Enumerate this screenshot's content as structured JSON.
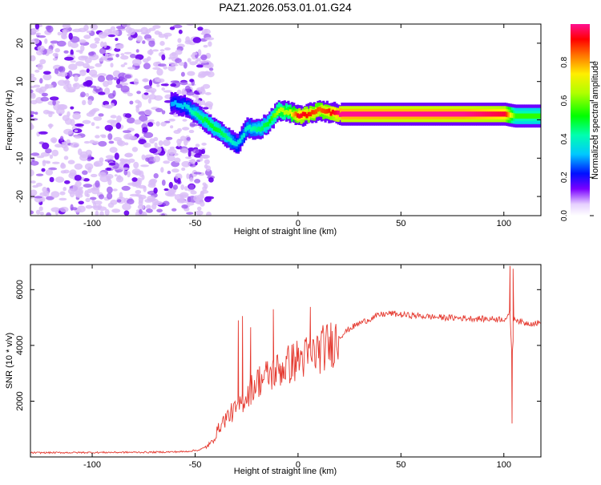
{
  "title": "PAZ1.2026.053.01.01.G24",
  "chart_data": [
    {
      "type": "heatmap",
      "xlabel": "Height of straight line (km)",
      "ylabel": "Frequency (Hz)",
      "xlim": [
        -130,
        118
      ],
      "ylim": [
        -25,
        25
      ],
      "xticks": [
        -100,
        -50,
        0,
        50,
        100
      ],
      "xtick_labels": [
        "-100",
        "-50",
        "0",
        "50",
        "100"
      ],
      "yticks": [
        -20,
        -10,
        0,
        10,
        20
      ],
      "ytick_labels": [
        "-20",
        "-10",
        "0",
        "10",
        "20"
      ],
      "colorbar": {
        "label": "Normalized spectral amplitude",
        "range": [
          0,
          1
        ],
        "ticks": [
          0.0,
          0.2,
          0.4,
          0.6,
          0.8
        ],
        "tick_labels": [
          "0.0",
          "0.2",
          "0.4",
          "0.6",
          "0.8"
        ]
      },
      "ridge": {
        "x": [
          -62,
          -55,
          -50,
          -45,
          -40,
          -35,
          -30,
          -25,
          -20,
          -15,
          -10,
          -5,
          0,
          5,
          10,
          15,
          20,
          40,
          60,
          80,
          100,
          105,
          118
        ],
        "y": [
          4.5,
          3.5,
          1.5,
          -0.5,
          -2.5,
          -4.5,
          -6.5,
          -2.0,
          -2.5,
          -1.0,
          2.5,
          2.0,
          1.0,
          1.5,
          2.5,
          2.0,
          1.5,
          1.5,
          1.5,
          1.5,
          1.5,
          1.0,
          1.0
        ],
        "amplitude": [
          0.25,
          0.3,
          0.4,
          0.45,
          0.45,
          0.4,
          0.3,
          0.35,
          0.4,
          0.45,
          0.6,
          0.6,
          0.9,
          0.85,
          0.8,
          0.85,
          0.95,
          0.95,
          0.95,
          0.95,
          0.9,
          0.5,
          0.5
        ]
      },
      "noise_region_x": [
        -130,
        -45
      ]
    },
    {
      "type": "line",
      "xlabel": "Height of straight line (km)",
      "ylabel": "SNR (10 * v/v)",
      "xlim": [
        -130,
        118
      ],
      "ylim": [
        0,
        6900
      ],
      "xticks": [
        -100,
        -50,
        0,
        50,
        100
      ],
      "xtick_labels": [
        "-100",
        "-50",
        "0",
        "50",
        "100"
      ],
      "yticks": [
        2000,
        4000,
        6000
      ],
      "ytick_labels": [
        "2000",
        "4000",
        "6000"
      ],
      "series": [
        {
          "name": "SNR",
          "color": "#e53a30",
          "x": [
            -130,
            -100,
            -70,
            -55,
            -48,
            -45,
            -42,
            -40,
            -38,
            -35,
            -32,
            -30,
            -28,
            -25,
            -22,
            -20,
            -15,
            -10,
            -5,
            0,
            5,
            10,
            15,
            20,
            25,
            30,
            35,
            40,
            45,
            50,
            60,
            70,
            80,
            90,
            95,
            100,
            102,
            103,
            104,
            105,
            108,
            110,
            115,
            118
          ],
          "y": [
            150,
            160,
            170,
            190,
            250,
            350,
            500,
            800,
            1100,
            1400,
            1600,
            1700,
            1900,
            2200,
            2500,
            2700,
            2900,
            3100,
            3300,
            3500,
            3600,
            3800,
            4000,
            4300,
            4600,
            4800,
            4950,
            5100,
            5150,
            5100,
            5050,
            5000,
            4980,
            4950,
            4950,
            4950,
            5000,
            5200,
            3500,
            5000,
            4850,
            4800,
            4800,
            4800
          ],
          "spikes": [
            {
              "x": -29,
              "y": 4900
            },
            {
              "x": -27,
              "y": 5050
            },
            {
              "x": -23,
              "y": 4650
            },
            {
              "x": -12,
              "y": 5300
            },
            {
              "x": 6,
              "y": 5380
            },
            {
              "x": 103,
              "y": 6850
            },
            {
              "x": 104,
              "y": 1200
            },
            {
              "x": 104.5,
              "y": 6750
            }
          ]
        }
      ]
    }
  ]
}
